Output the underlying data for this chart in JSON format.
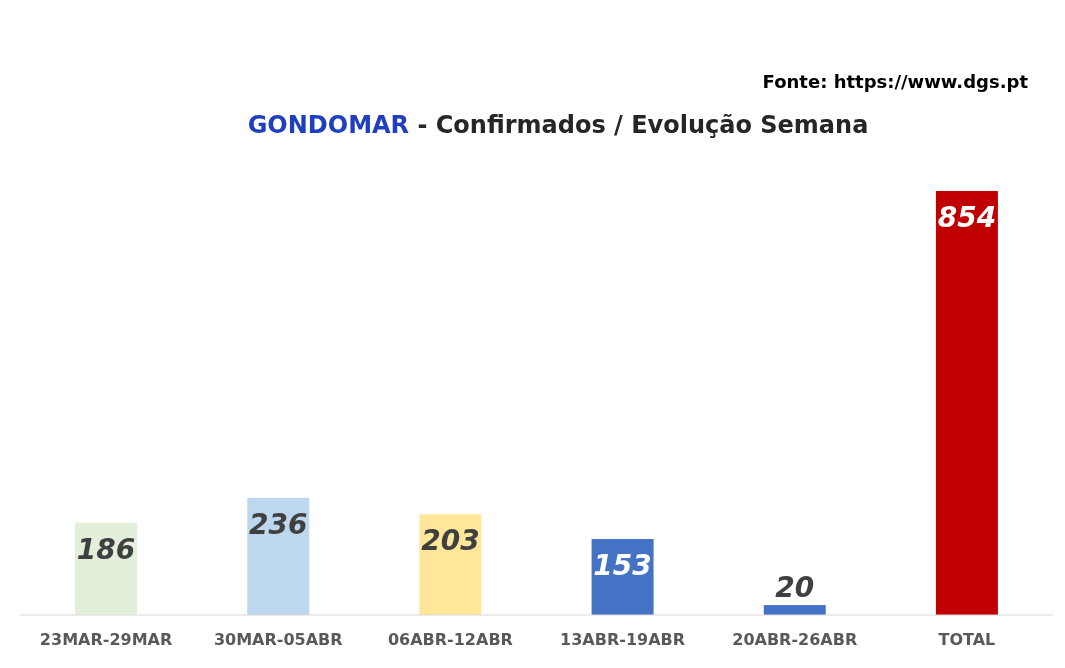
{
  "chart_data": {
    "type": "bar",
    "title": "GONDOMAR - Confirmados / Evolução Semana",
    "annotations": [
      "Fonte: https://www.dgs.pt"
    ],
    "categories": [
      "23MAR-29MAR",
      "30MAR-05ABR",
      "06ABR-12ABR",
      "13ABR-19ABR",
      "20ABR-26ABR",
      "TOTAL"
    ],
    "values": [
      186,
      236,
      203,
      153,
      20,
      854
    ],
    "colors": [
      "#e2efda",
      "#bdd7ee",
      "#ffe699",
      "#4472c4",
      "#4472c4",
      "#c00000"
    ],
    "data_labels": true
  }
}
